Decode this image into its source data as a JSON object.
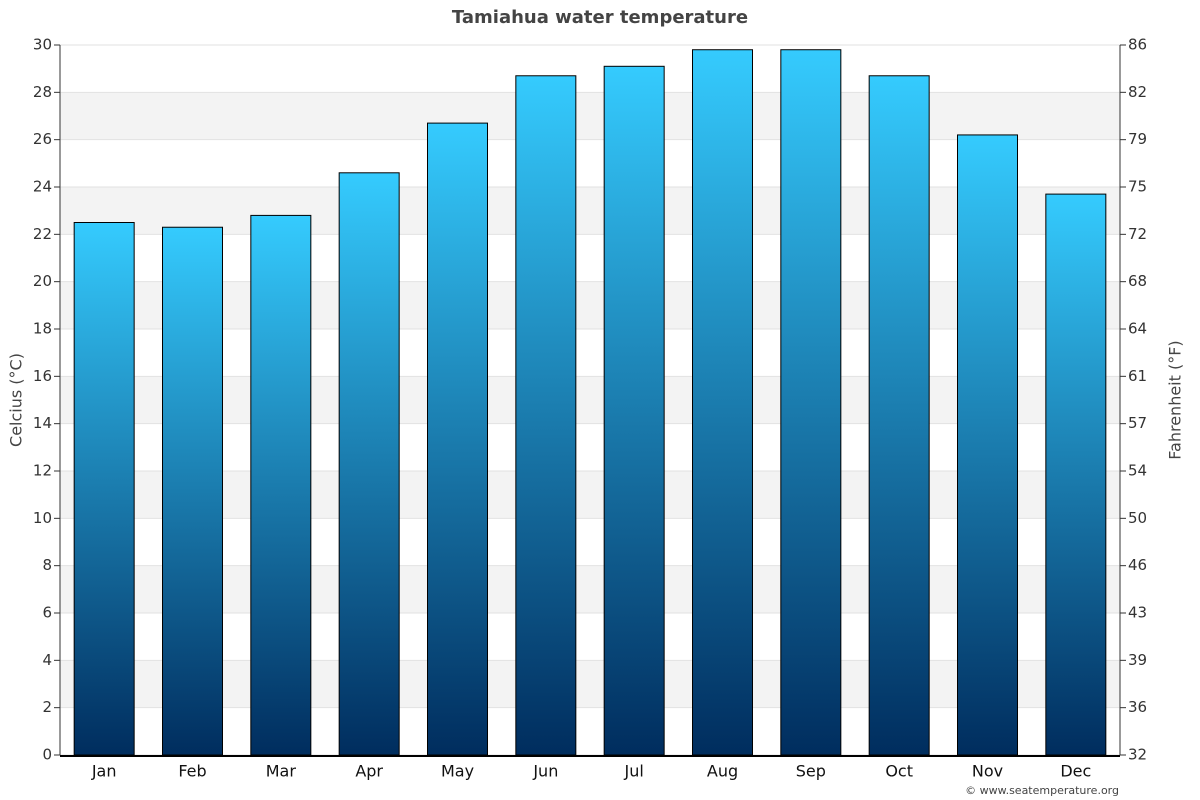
{
  "chart_data": {
    "type": "bar",
    "title": "Tamiahua water temperature",
    "y_label": "Celcius (°C)",
    "y2_label": "Fahrenheit (°F)",
    "credit": "© www.seatemperature.org",
    "categories": [
      "Jan",
      "Feb",
      "Mar",
      "Apr",
      "May",
      "Jun",
      "Jul",
      "Aug",
      "Sep",
      "Oct",
      "Nov",
      "Dec"
    ],
    "values": [
      22.5,
      22.3,
      22.8,
      24.6,
      26.7,
      28.7,
      29.1,
      29.8,
      29.8,
      28.7,
      26.2,
      23.7
    ],
    "gradient": [
      "#35cbfe",
      "#002d5e"
    ],
    "ylim": [
      0,
      30
    ],
    "yticks": [
      0,
      2,
      4,
      6,
      8,
      10,
      12,
      14,
      16,
      18,
      20,
      22,
      24,
      26,
      28,
      30
    ],
    "y2lim": [
      32,
      86
    ],
    "y2ticks": [
      32,
      {
        "value": 35.6,
        "label": "36"
      },
      {
        "value": 39.2,
        "label": "39"
      },
      {
        "value": 42.8,
        "label": "43"
      },
      {
        "value": 46.4,
        "label": "46"
      },
      50,
      {
        "value": 53.6,
        "label": "54"
      },
      {
        "value": 57.2,
        "label": "57"
      },
      {
        "value": 60.8,
        "label": "61"
      },
      {
        "value": 64.4,
        "label": "64"
      },
      68,
      {
        "value": 71.6,
        "label": "72"
      },
      {
        "value": 75.2,
        "label": "75"
      },
      {
        "value": 78.8,
        "label": "79"
      },
      {
        "value": 82.4,
        "label": "82"
      },
      86
    ],
    "grid": true
  }
}
